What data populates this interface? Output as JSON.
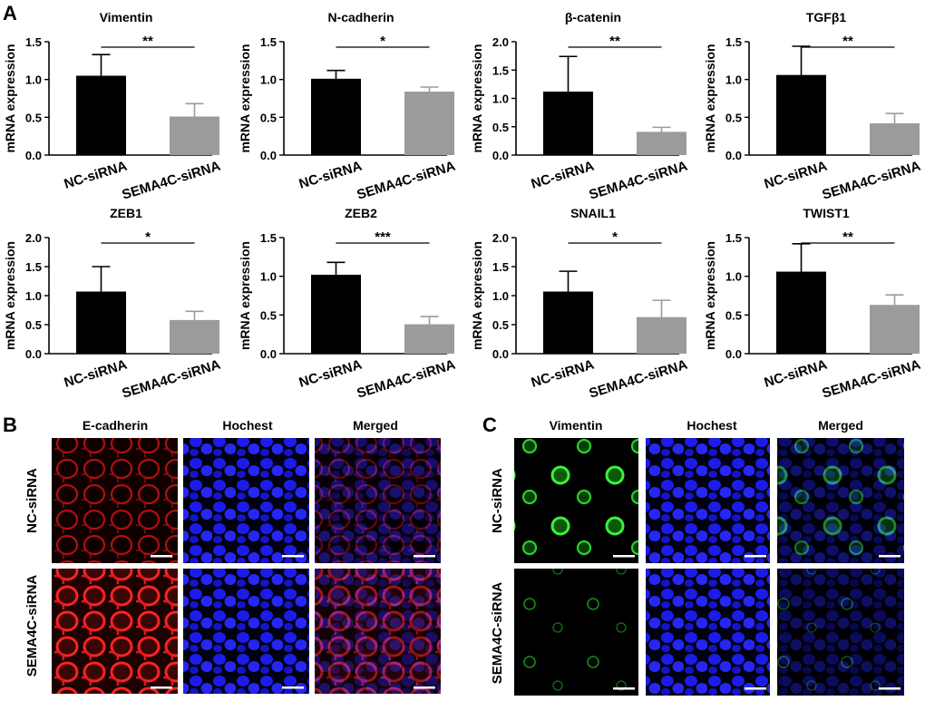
{
  "panel_labels": [
    "A",
    "B",
    "C"
  ],
  "ylabel": "mRNA expression",
  "categories": [
    "NC-siRNA",
    "SEMA4C-siRNA"
  ],
  "colors": {
    "nc": "#000000",
    "sema": "#9b9b9b"
  },
  "chart_data": [
    {
      "type": "bar",
      "title": "Vimentin",
      "categories": [
        "NC-siRNA",
        "SEMA4C-siRNA"
      ],
      "values": [
        1.05,
        0.51
      ],
      "errors": [
        0.28,
        0.17
      ],
      "significance": "**",
      "ylim": [
        0,
        1.5
      ],
      "ticks": [
        "0.0",
        "0.5",
        "1.0",
        "1.5"
      ],
      "ylabel": "mRNA expression"
    },
    {
      "type": "bar",
      "title": "N-cadherin",
      "categories": [
        "NC-siRNA",
        "SEMA4C-siRNA"
      ],
      "values": [
        1.01,
        0.84
      ],
      "errors": [
        0.11,
        0.06
      ],
      "significance": "*",
      "ylim": [
        0,
        1.5
      ],
      "ticks": [
        "0.0",
        "0.5",
        "1.0",
        "1.5"
      ],
      "ylabel": "mRNA expression"
    },
    {
      "type": "bar",
      "title": "β-catenin",
      "categories": [
        "NC-siRNA",
        "SEMA4C-siRNA"
      ],
      "values": [
        1.12,
        0.41
      ],
      "errors": [
        0.62,
        0.08
      ],
      "significance": "**",
      "ylim": [
        0,
        2.0
      ],
      "ticks": [
        "0.0",
        "0.5",
        "1.0",
        "1.5",
        "2.0"
      ],
      "ylabel": "mRNA expression"
    },
    {
      "type": "bar",
      "title": "TGFβ1",
      "categories": [
        "NC-siRNA",
        "SEMA4C-siRNA"
      ],
      "values": [
        1.06,
        0.42
      ],
      "errors": [
        0.38,
        0.13
      ],
      "significance": "**",
      "ylim": [
        0,
        1.5
      ],
      "ticks": [
        "0.0",
        "0.5",
        "1.0",
        "1.5"
      ],
      "ylabel": "mRNA expression"
    },
    {
      "type": "bar",
      "title": "ZEB1",
      "categories": [
        "NC-siRNA",
        "SEMA4C-siRNA"
      ],
      "values": [
        1.07,
        0.58
      ],
      "errors": [
        0.43,
        0.15
      ],
      "significance": "*",
      "ylim": [
        0,
        2.0
      ],
      "ticks": [
        "0.0",
        "0.5",
        "1.0",
        "1.5",
        "2.0"
      ],
      "ylabel": "mRNA expression"
    },
    {
      "type": "bar",
      "title": "ZEB2",
      "categories": [
        "NC-siRNA",
        "SEMA4C-siRNA"
      ],
      "values": [
        1.02,
        0.38
      ],
      "errors": [
        0.16,
        0.1
      ],
      "significance": "***",
      "ylim": [
        0,
        1.5
      ],
      "ticks": [
        "0.0",
        "0.5",
        "1.0",
        "1.5"
      ],
      "ylabel": "mRNA expression"
    },
    {
      "type": "bar",
      "title": "SNAIL1",
      "categories": [
        "NC-siRNA",
        "SEMA4C-siRNA"
      ],
      "values": [
        1.07,
        0.63
      ],
      "errors": [
        0.35,
        0.29
      ],
      "significance": "*",
      "ylim": [
        0,
        2.0
      ],
      "ticks": [
        "0.0",
        "0.5",
        "1.0",
        "1.5",
        "2.0"
      ],
      "ylabel": "mRNA expression"
    },
    {
      "type": "bar",
      "title": "TWIST1",
      "categories": [
        "NC-siRNA",
        "SEMA4C-siRNA"
      ],
      "values": [
        1.06,
        0.63
      ],
      "errors": [
        0.36,
        0.13
      ],
      "significance": "**",
      "ylim": [
        0,
        1.5
      ],
      "ticks": [
        "0.0",
        "0.5",
        "1.0",
        "1.5"
      ],
      "ylabel": "mRNA expression"
    }
  ],
  "micrographs": {
    "B": {
      "columns": [
        "E-cadherin",
        "Hochest",
        "Merged"
      ],
      "rows": [
        "NC-siRNA",
        "SEMA4C-siRNA"
      ],
      "stain_color": "#e01010",
      "nuclear_color": "#2a2aff"
    },
    "C": {
      "columns": [
        "Vimentin",
        "Hochest",
        "Merged"
      ],
      "rows": [
        "NC-siRNA",
        "SEMA4C-siRNA"
      ],
      "stain_color": "#22dd22",
      "nuclear_color": "#2a2aff"
    }
  }
}
